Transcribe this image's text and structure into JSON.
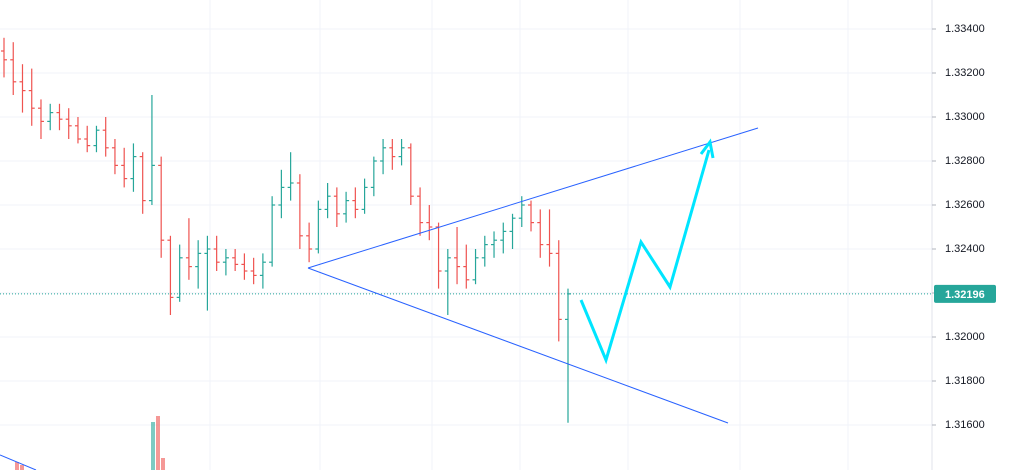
{
  "chart_data": {
    "type": "ohlc",
    "up_color": "#26a69a",
    "down_color": "#ef5350",
    "open": [
      1.333,
      1.3326,
      1.3316,
      1.3312,
      1.3304,
      1.3298,
      1.3302,
      1.3299,
      1.3296,
      1.329,
      1.3287,
      1.3294,
      1.3286,
      1.3278,
      1.3272,
      1.3282,
      1.3262,
      1.3278,
      1.3244,
      1.3218,
      1.3236,
      1.3232,
      1.3238,
      1.324,
      1.3234,
      1.3236,
      1.3233,
      1.323,
      1.3228,
      1.3234,
      1.326,
      1.3268,
      1.327,
      1.3246,
      1.324,
      1.3258,
      1.3264,
      1.3256,
      1.3262,
      1.3258,
      1.3268,
      1.328,
      1.3286,
      1.3282,
      1.3286,
      1.3264,
      1.3252,
      1.325,
      1.323,
      1.3236,
      1.3232,
      1.3226,
      1.3236,
      1.3242,
      1.3244,
      1.3248,
      1.3254,
      1.326,
      1.3252,
      1.3242,
      1.3238,
      1.3208
    ],
    "high": [
      1.3336,
      1.3334,
      1.3324,
      1.3322,
      1.3308,
      1.3306,
      1.3306,
      1.3304,
      1.33,
      1.3296,
      1.3296,
      1.33,
      1.329,
      1.3286,
      1.3288,
      1.3284,
      1.331,
      1.3282,
      1.3246,
      1.3242,
      1.3254,
      1.3244,
      1.3246,
      1.3246,
      1.324,
      1.324,
      1.3238,
      1.3236,
      1.3238,
      1.3264,
      1.3276,
      1.3284,
      1.3274,
      1.3252,
      1.3262,
      1.327,
      1.3268,
      1.3266,
      1.3268,
      1.3272,
      1.3282,
      1.329,
      1.329,
      1.329,
      1.3288,
      1.3268,
      1.326,
      1.3252,
      1.324,
      1.325,
      1.3242,
      1.324,
      1.3246,
      1.3248,
      1.3252,
      1.3256,
      1.3264,
      1.3262,
      1.3258,
      1.3258,
      1.3244,
      1.3222
    ],
    "low": [
      1.3318,
      1.331,
      1.3302,
      1.3296,
      1.329,
      1.3294,
      1.3294,
      1.329,
      1.3288,
      1.3284,
      1.3284,
      1.3282,
      1.3274,
      1.3268,
      1.3266,
      1.3256,
      1.326,
      1.3236,
      1.321,
      1.3216,
      1.3226,
      1.3222,
      1.3212,
      1.323,
      1.3228,
      1.323,
      1.3226,
      1.3224,
      1.3222,
      1.3232,
      1.3254,
      1.3262,
      1.324,
      1.3234,
      1.3238,
      1.3254,
      1.325,
      1.3252,
      1.3254,
      1.3256,
      1.3264,
      1.3274,
      1.3276,
      1.3278,
      1.326,
      1.3246,
      1.3244,
      1.3222,
      1.321,
      1.3224,
      1.3222,
      1.3224,
      1.3232,
      1.3236,
      1.3238,
      1.324,
      1.325,
      1.3248,
      1.3236,
      1.3232,
      1.3198,
      1.3161
    ],
    "close": [
      1.3326,
      1.3316,
      1.3312,
      1.3304,
      1.3298,
      1.3302,
      1.3299,
      1.3296,
      1.329,
      1.3287,
      1.3294,
      1.3286,
      1.3278,
      1.3272,
      1.3282,
      1.3262,
      1.3278,
      1.3244,
      1.3218,
      1.3236,
      1.3232,
      1.3238,
      1.324,
      1.3234,
      1.3236,
      1.3233,
      1.323,
      1.3228,
      1.3234,
      1.326,
      1.3268,
      1.327,
      1.3246,
      1.324,
      1.3258,
      1.3264,
      1.3256,
      1.3262,
      1.3258,
      1.3268,
      1.328,
      1.3286,
      1.3282,
      1.3286,
      1.3264,
      1.3252,
      1.325,
      1.323,
      1.3236,
      1.3232,
      1.3226,
      1.3236,
      1.3242,
      1.3244,
      1.3248,
      1.3254,
      1.326,
      1.3252,
      1.3242,
      1.3238,
      1.3208,
      1.32196
    ],
    "last_price": 1.32196,
    "ylim": [
      1.313955,
      1.335318
    ],
    "yticks": [
      {
        "value": 1.334,
        "label": "1.33400"
      },
      {
        "value": 1.332,
        "label": "1.33200"
      },
      {
        "value": 1.33,
        "label": "1.33000"
      },
      {
        "value": 1.328,
        "label": "1.32800"
      },
      {
        "value": 1.326,
        "label": "1.32600"
      },
      {
        "value": 1.324,
        "label": "1.32400"
      },
      {
        "value": 1.322,
        "label": "1.32200"
      },
      {
        "value": 1.32,
        "label": "1.32000"
      },
      {
        "value": 1.318,
        "label": "1.31800"
      },
      {
        "value": 1.316,
        "label": "1.31600"
      }
    ],
    "grid": true
  }
}
